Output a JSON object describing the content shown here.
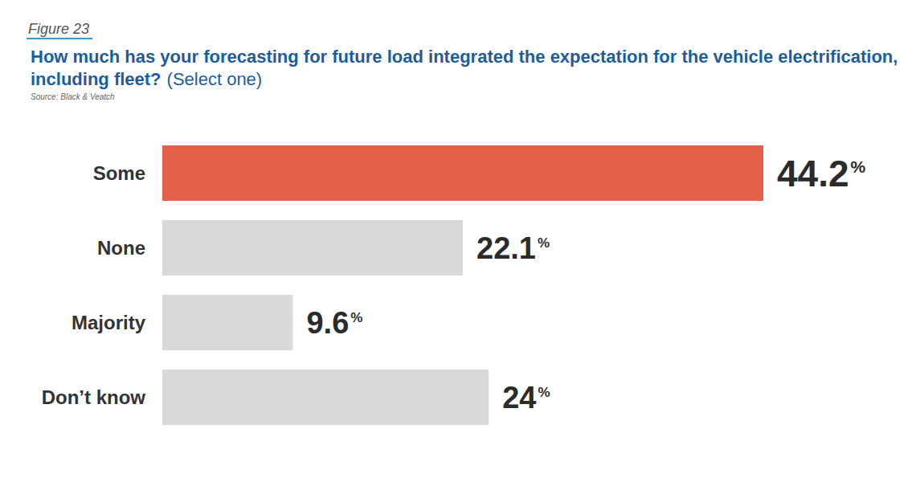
{
  "chart_data": {
    "type": "bar",
    "orientation": "horizontal",
    "figure_label": "Figure 23",
    "title": "How much has your forecasting for future load integrated the expectation for the vehicle electrification, including fleet?",
    "subtitle": "(Select one)",
    "source": "Source: Black & Veatch",
    "categories": [
      "Some",
      "None",
      "Majority",
      "Don’t know"
    ],
    "values": [
      44.2,
      22.1,
      9.6,
      24
    ],
    "value_labels": [
      "44.2%",
      "22.1%",
      "9.6%",
      "24%"
    ],
    "colors": [
      "#e4604a",
      "#d9d9d9",
      "#d9d9d9",
      "#d9d9d9"
    ],
    "data_labels": true,
    "tick_labels": "y",
    "grid": false
  }
}
